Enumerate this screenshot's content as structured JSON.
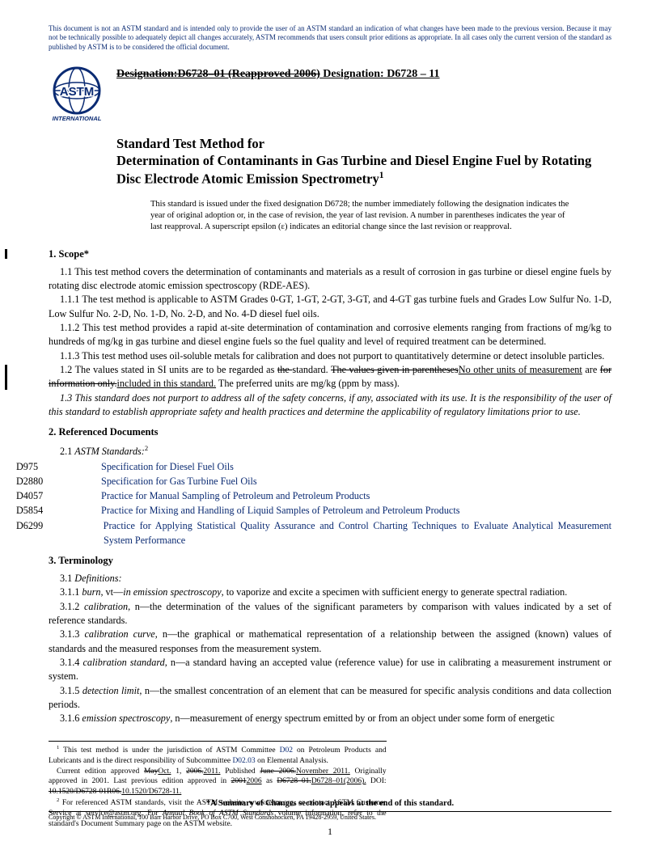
{
  "disclaimer": "This document is not an ASTM standard and is intended only to provide the user of an ASTM standard an indication of what changes have been made to the previous version. Because it may not be technically possible to adequately depict all changes accurately, ASTM recommends that users consult prior editions as appropriate. In all cases only the current version of the standard as published by ASTM is to be considered the official document.",
  "designation_old": "Designation:D6728–01 (Reapproved 2006)",
  "designation_new": " Designation: D6728 – 11",
  "title_line1": "Standard Test Method for",
  "title_line2": "Determination of Contaminants in Gas Turbine and Diesel Engine Fuel by Rotating Disc Electrode Atomic Emission Spectrometry",
  "title_sup": "1",
  "issued_note": "This standard is issued under the fixed designation D6728; the number immediately following the designation indicates the year of original adoption or, in the case of revision, the year of last revision. A number in parentheses indicates the year of last reapproval. A superscript epsilon (ε) indicates an editorial change since the last revision or reapproval.",
  "s1_head": "1. Scope*",
  "s1_1": "1.1 This test method covers the determination of contaminants and materials as a result of corrosion in gas turbine or diesel engine fuels by rotating disc electrode atomic emission spectroscopy (RDE-AES).",
  "s1_1_1": "1.1.1 The test method is applicable to ASTM Grades 0-GT, 1-GT, 2-GT, 3-GT, and 4-GT gas turbine fuels and Grades Low Sulfur No. 1-D, Low Sulfur No. 2-D, No. 1-D, No. 2-D, and No. 4-D diesel fuel oils.",
  "s1_1_2": "1.1.2 This test method provides a rapid at-site determination of contamination and corrosive elements ranging from fractions of mg/kg to hundreds of mg/kg in gas turbine and diesel engine fuels so the fuel quality and level of required treatment can be determined.",
  "s1_1_3": "1.1.3 This test method uses oil-soluble metals for calibration and does not purport to quantitatively determine or detect insoluble particles.",
  "s1_2_a": "1.2 The values stated in SI units are to be regarded as ",
  "s1_2_the": "the ",
  "s1_2_std": "standard. ",
  "s1_2_b": "The values given in parentheses",
  "s1_2_c": "No other units of measurement",
  "s1_2_d": " are ",
  "s1_2_e": "for information only.",
  "s1_2_f": "included in this standard.",
  "s1_2_g": " The preferred units are mg/kg (ppm by mass).",
  "s1_3": "1.3 This standard does not purport to address all of the safety concerns, if any, associated with its use. It is the responsibility of the user of this standard to establish appropriate safety and health practices and determine the applicability of regulatory limitations prior to use.",
  "s2_head": "2. Referenced Documents",
  "s2_1": "2.1 ",
  "s2_1_i": "ASTM Standards:",
  "s2_sup": "2",
  "refs": [
    {
      "code": "D975",
      "title": "Specification for Diesel Fuel Oils"
    },
    {
      "code": "D2880",
      "title": "Specification for Gas Turbine Fuel Oils"
    },
    {
      "code": "D4057",
      "title": "Practice for Manual Sampling of Petroleum and Petroleum Products"
    },
    {
      "code": "D5854",
      "title": "Practice for Mixing and Handling of Liquid Samples of Petroleum and Petroleum Products"
    },
    {
      "code": "D6299",
      "title": "Practice for Applying Statistical Quality Assurance and Control Charting Techniques to Evaluate Analytical Measurement System Performance"
    }
  ],
  "s3_head": "3. Terminology",
  "s3_1": "3.1 ",
  "s3_1_i": "Definitions:",
  "defs": [
    {
      "num": "3.1.1 ",
      "term": "burn",
      "pos": ", vt—",
      "ctx": "in emission spectroscopy",
      "txt": ", to vaporize and excite a specimen with sufficient energy to generate spectral radiation."
    },
    {
      "num": "3.1.2 ",
      "term": "calibration",
      "pos": ", n—",
      "ctx": "",
      "txt": "the determination of the values of the significant parameters by comparison with values indicated by a set of reference standards."
    },
    {
      "num": "3.1.3 ",
      "term": "calibration curve",
      "pos": ", n—",
      "ctx": "",
      "txt": "the graphical or mathematical representation of a relationship between the assigned (known) values of standards and the measured responses from the measurement system."
    },
    {
      "num": "3.1.4 ",
      "term": "calibration standard",
      "pos": ", n—",
      "ctx": "",
      "txt": "a standard having an accepted value (reference value) for use in calibrating a measurement instrument or system."
    },
    {
      "num": "3.1.5 ",
      "term": "detection limit",
      "pos": ", n—",
      "ctx": "",
      "txt": "the smallest concentration of an element that can be measured for specific analysis conditions and data collection periods."
    },
    {
      "num": "3.1.6 ",
      "term": "emission spectroscopy",
      "pos": ", n—",
      "ctx": "",
      "txt": "measurement of energy spectrum emitted by or from an object under some form of energetic"
    }
  ],
  "fn1_a": " This test method is under the jurisdiction of ASTM Committee ",
  "fn1_l1": "D02",
  "fn1_b": " on Petroleum Products and Lubricants and is the direct responsibility of Subcommittee ",
  "fn1_l2": "D02.03",
  "fn1_c": " on Elemental Analysis.",
  "fn1_d": "Current edition approved ",
  "fn1_may": "May",
  "fn1_oct": "Oct.",
  "fn1_e": " 1, ",
  "fn1_y1": "2006.",
  "fn1_y2": "2011.",
  "fn1_f": " Published ",
  "fn1_p1": "June 2006.",
  "fn1_p2": "November 2011.",
  "fn1_g": " Originally approved in 2001. Last previous edition approved in ",
  "fn1_h1": "2001",
  "fn1_h2": "2006",
  "fn1_i": " as ",
  "fn1_j1": "D6728–01.",
  "fn1_j2": "D6728–01(2006).",
  "fn1_k": " DOI: ",
  "fn1_d1": "10.1520/D6728-01R06.",
  "fn1_d2": "10.1520/D6728-11.",
  "fn2": " For referenced ASTM standards, visit the ASTM website, www.astm.org, or contact ASTM Customer Service at service@astm.org. For Annual Book of ASTM Standards volume information, refer to the standard's Document Summary page on the ASTM website.",
  "fn2_pre": " For referenced ASTM standards, visit the ASTM website, www.astm.org, or contact ASTM Customer Service at service@astm.org. For ",
  "fn2_i": "Annual Book of ASTM Standards",
  "fn2_post": " volume information, refer to the standard's Document Summary page on the ASTM website.",
  "summary_note": "*A Summary of Changes section appears at the end of this standard.",
  "copyright": "Copyright © ASTM International, 100 Barr Harbor Drive, PO Box C700, West Conshohocken, PA 19428-2959, United States.",
  "page_num": "1"
}
